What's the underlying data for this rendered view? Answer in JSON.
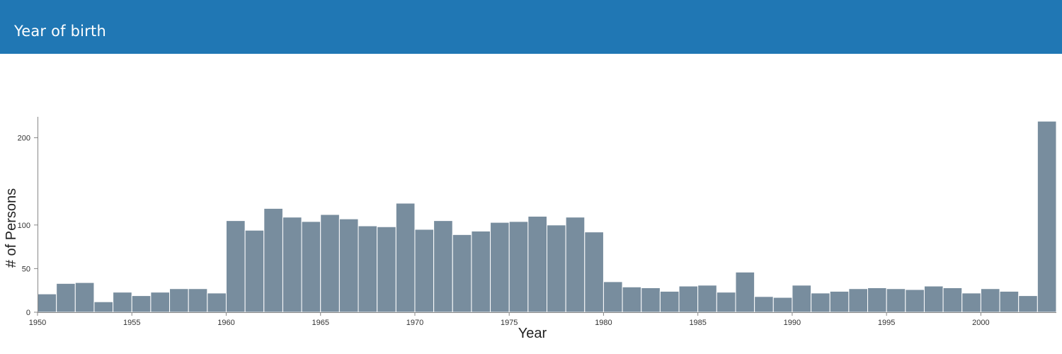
{
  "header": {
    "title": "Year of birth",
    "background_color": "#2077b4"
  },
  "chart_data": {
    "type": "bar",
    "title": "",
    "xlabel": "Year",
    "ylabel": "# of Persons",
    "bar_color": "#788d9e",
    "x_ticks": [
      1950,
      1955,
      1960,
      1965,
      1970,
      1975,
      1980,
      1985,
      1990,
      1995,
      2000
    ],
    "y_ticks": [
      0,
      50,
      100,
      200
    ],
    "ylim": [
      0,
      224
    ],
    "xlim": [
      1950,
      2004
    ],
    "grid": false,
    "bin_width": 1,
    "categories": [
      1950,
      1951,
      1952,
      1953,
      1954,
      1955,
      1956,
      1957,
      1958,
      1959,
      1960,
      1961,
      1962,
      1963,
      1964,
      1965,
      1966,
      1967,
      1968,
      1969,
      1970,
      1971,
      1972,
      1973,
      1974,
      1975,
      1976,
      1977,
      1978,
      1979,
      1980,
      1981,
      1982,
      1983,
      1984,
      1985,
      1986,
      1987,
      1988,
      1989,
      1990,
      1991,
      1992,
      1993,
      1994,
      1995,
      1996,
      1997,
      1998,
      1999,
      2000,
      2001,
      2002,
      2003
    ],
    "values": [
      21,
      33,
      34,
      12,
      23,
      19,
      23,
      27,
      27,
      22,
      105,
      94,
      119,
      109,
      104,
      112,
      107,
      99,
      98,
      125,
      95,
      105,
      89,
      93,
      103,
      104,
      110,
      100,
      109,
      92,
      35,
      29,
      28,
      24,
      30,
      31,
      23,
      46,
      18,
      17,
      31,
      22,
      24,
      27,
      28,
      27,
      26,
      30,
      28,
      22,
      27,
      24,
      19,
      219
    ]
  }
}
